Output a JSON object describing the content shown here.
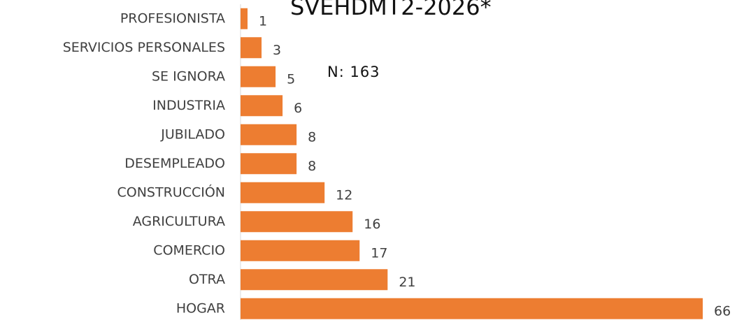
{
  "chart_data": {
    "type": "bar",
    "orientation": "horizontal",
    "title": "SVEHDMT2-2026*",
    "annotation": "N: 163",
    "categories": [
      "PROFESIONISTA",
      "SERVICIOS PERSONALES",
      "SE IGNORA",
      "INDUSTRIA",
      "JUBILADO",
      "DESEMPLEADO",
      "CONSTRUCCIÓN",
      "AGRICULTURA",
      "COMERCIO",
      "OTRA",
      "HOGAR"
    ],
    "values": [
      1,
      3,
      5,
      6,
      8,
      8,
      12,
      16,
      17,
      21,
      66
    ],
    "color": "#ed7d31",
    "xlim": [
      0,
      66
    ]
  }
}
